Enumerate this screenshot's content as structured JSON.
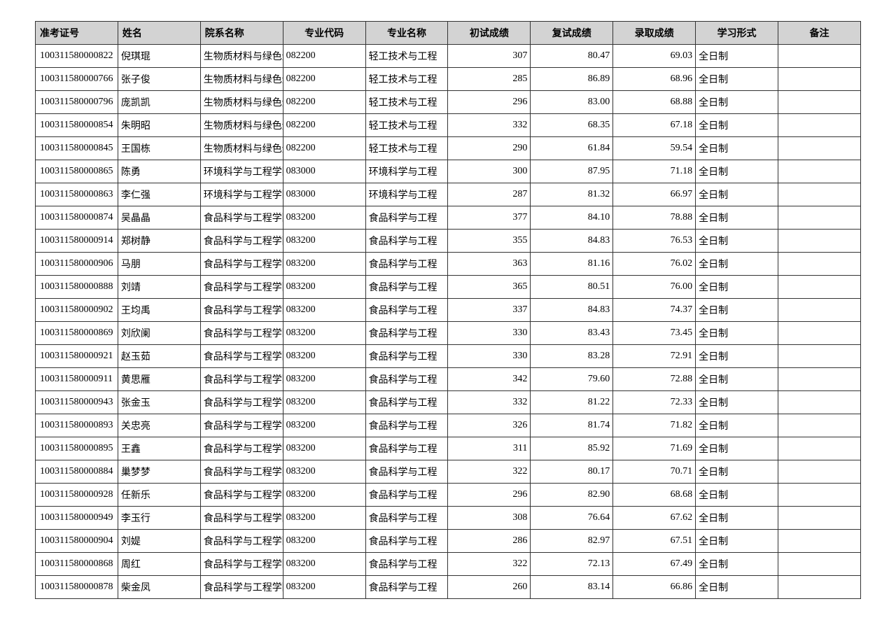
{
  "columns": [
    "准考证号",
    "姓名",
    "院系名称",
    "专业代码",
    "专业名称",
    "初试成绩",
    "复试成绩",
    "录取成绩",
    "学习形式",
    "备注"
  ],
  "rows": [
    [
      "100311580000822",
      "倪琪琨",
      "生物质材料与绿色造纸国家重点实验室",
      "082200",
      "轻工技术与工程",
      "307",
      "80.47",
      "69.03",
      "全日制",
      ""
    ],
    [
      "100311580000766",
      "张子俊",
      "生物质材料与绿色造纸国家重点实验室",
      "082200",
      "轻工技术与工程",
      "285",
      "86.89",
      "68.96",
      "全日制",
      ""
    ],
    [
      "100311580000796",
      "庞凯凯",
      "生物质材料与绿色造纸国家重点实验室",
      "082200",
      "轻工技术与工程",
      "296",
      "83.00",
      "68.88",
      "全日制",
      ""
    ],
    [
      "100311580000854",
      "朱明昭",
      "生物质材料与绿色造纸国家重点实验室",
      "082200",
      "轻工技术与工程",
      "332",
      "68.35",
      "67.18",
      "全日制",
      ""
    ],
    [
      "100311580000845",
      "王国栋",
      "生物质材料与绿色造纸国家重点实验室",
      "082200",
      "轻工技术与工程",
      "290",
      "61.84",
      "59.54",
      "全日制",
      ""
    ],
    [
      "100311580000865",
      "陈勇",
      "环境科学与工程学院",
      "083000",
      "环境科学与工程",
      "300",
      "87.95",
      "71.18",
      "全日制",
      ""
    ],
    [
      "100311580000863",
      "李仁强",
      "环境科学与工程学院",
      "083000",
      "环境科学与工程",
      "287",
      "81.32",
      "66.97",
      "全日制",
      ""
    ],
    [
      "100311580000874",
      "吴晶晶",
      "食品科学与工程学院",
      "083200",
      "食品科学与工程",
      "377",
      "84.10",
      "78.88",
      "全日制",
      ""
    ],
    [
      "100311580000914",
      "郑树静",
      "食品科学与工程学院",
      "083200",
      "食品科学与工程",
      "355",
      "84.83",
      "76.53",
      "全日制",
      ""
    ],
    [
      "100311580000906",
      "马朋",
      "食品科学与工程学院",
      "083200",
      "食品科学与工程",
      "363",
      "81.16",
      "76.02",
      "全日制",
      ""
    ],
    [
      "100311580000888",
      "刘靖",
      "食品科学与工程学院",
      "083200",
      "食品科学与工程",
      "365",
      "80.51",
      "76.00",
      "全日制",
      ""
    ],
    [
      "100311580000902",
      "王均禹",
      "食品科学与工程学院",
      "083200",
      "食品科学与工程",
      "337",
      "84.83",
      "74.37",
      "全日制",
      ""
    ],
    [
      "100311580000869",
      "刘欣阑",
      "食品科学与工程学院",
      "083200",
      "食品科学与工程",
      "330",
      "83.43",
      "73.45",
      "全日制",
      ""
    ],
    [
      "100311580000921",
      "赵玉茹",
      "食品科学与工程学院",
      "083200",
      "食品科学与工程",
      "330",
      "83.28",
      "72.91",
      "全日制",
      ""
    ],
    [
      "100311580000911",
      "黄思雁",
      "食品科学与工程学院",
      "083200",
      "食品科学与工程",
      "342",
      "79.60",
      "72.88",
      "全日制",
      ""
    ],
    [
      "100311580000943",
      "张金玉",
      "食品科学与工程学院",
      "083200",
      "食品科学与工程",
      "332",
      "81.22",
      "72.33",
      "全日制",
      ""
    ],
    [
      "100311580000893",
      "关忠亮",
      "食品科学与工程学院",
      "083200",
      "食品科学与工程",
      "326",
      "81.74",
      "71.82",
      "全日制",
      ""
    ],
    [
      "100311580000895",
      "王鑫",
      "食品科学与工程学院",
      "083200",
      "食品科学与工程",
      "311",
      "85.92",
      "71.69",
      "全日制",
      ""
    ],
    [
      "100311580000884",
      "巢梦梦",
      "食品科学与工程学院",
      "083200",
      "食品科学与工程",
      "322",
      "80.17",
      "70.71",
      "全日制",
      ""
    ],
    [
      "100311580000928",
      "任新乐",
      "食品科学与工程学院",
      "083200",
      "食品科学与工程",
      "296",
      "82.90",
      "68.68",
      "全日制",
      ""
    ],
    [
      "100311580000949",
      "李玉行",
      "食品科学与工程学院",
      "083200",
      "食品科学与工程",
      "308",
      "76.64",
      "67.62",
      "全日制",
      ""
    ],
    [
      "100311580000904",
      "刘媞",
      "食品科学与工程学院",
      "083200",
      "食品科学与工程",
      "286",
      "82.97",
      "67.51",
      "全日制",
      ""
    ],
    [
      "100311580000868",
      "周红",
      "食品科学与工程学院",
      "083200",
      "食品科学与工程",
      "322",
      "72.13",
      "67.49",
      "全日制",
      ""
    ],
    [
      "100311580000878",
      "柴金凤",
      "食品科学与工程学院",
      "083200",
      "食品科学与工程",
      "260",
      "83.14",
      "66.86",
      "全日制",
      ""
    ]
  ]
}
